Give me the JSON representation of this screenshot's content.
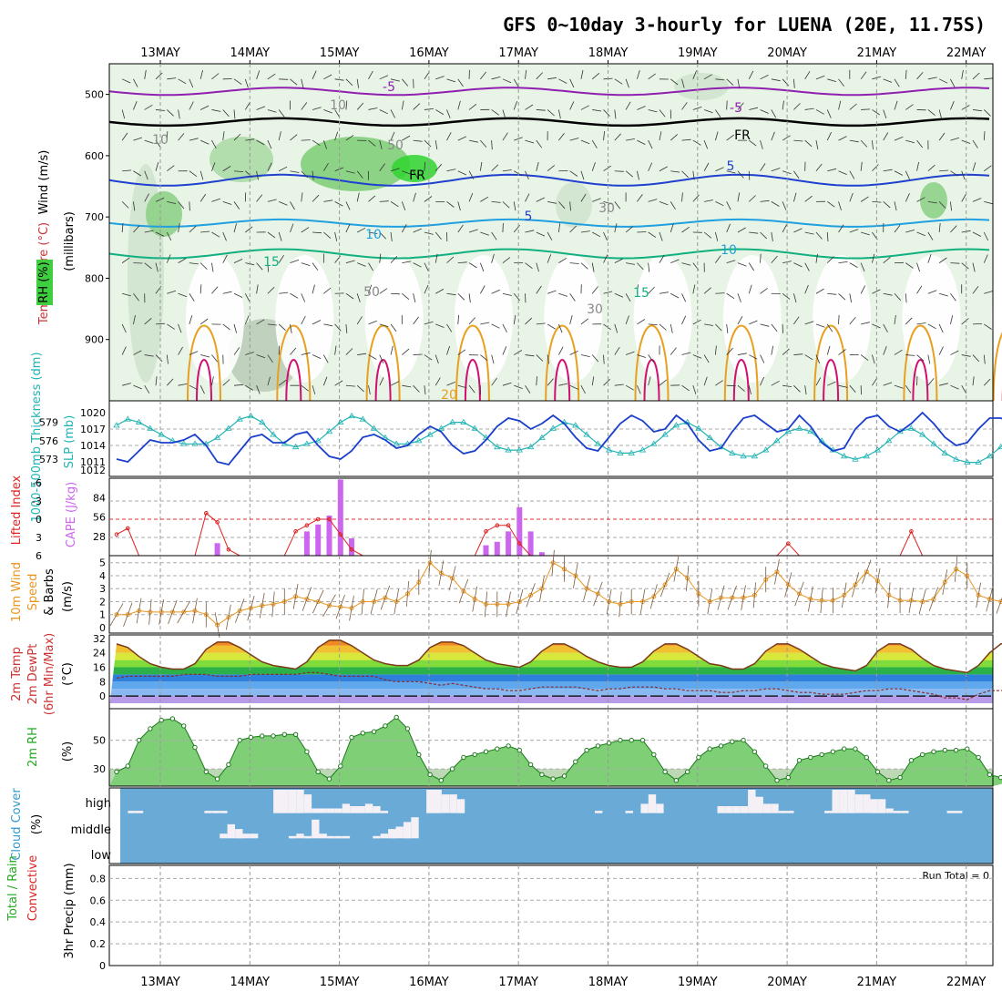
{
  "title": "GFS 0~10day 3-hourly for LUENA (20E, 11.75S)",
  "dates": [
    "13MAY",
    "14MAY",
    "15MAY",
    "16MAY",
    "17MAY",
    "18MAY",
    "19MAY",
    "20MAY",
    "21MAY",
    "22MAY"
  ],
  "run_total": "Run Total = 0",
  "colors": {
    "rh_fill": "#3fce3f",
    "thickness": "#22b3b3",
    "slp": "#1a3fcc",
    "cape": "#cc66ee",
    "lifted": "#dd2222",
    "wind": "#e89520",
    "cloud": "#6aaad6",
    "rh2m": "#3fbf3f"
  },
  "chart_data": [
    {
      "panel": "upper-air",
      "type": "heatmap",
      "ylabels": [
        "Wind (m/s)",
        "Temperature (°C)",
        "(millibars)",
        "RH (%)"
      ],
      "yticks": [
        500,
        600,
        700,
        800,
        900
      ],
      "ylim": [
        1000,
        450
      ],
      "contour_labels": [
        "-5",
        "-5",
        "FR",
        "FR",
        "5",
        "5",
        "10",
        "10",
        "15",
        "15",
        "20",
        "50",
        "50",
        "30",
        "30",
        "10",
        "10"
      ]
    },
    {
      "panel": "thickness-slp",
      "type": "line",
      "ylabels": [
        "1000-500mb Thickness (dm)",
        "SLP (mb)"
      ],
      "thickness_ticks": [
        "579",
        "576",
        "573"
      ],
      "slp_ticks": [
        "1020",
        "1017",
        "1014",
        "1011",
        "1012"
      ],
      "thickness": [
        578.5,
        579.5,
        579,
        578,
        577,
        576,
        575.5,
        575.5,
        575.5,
        576.5,
        578,
        579.5,
        580,
        579,
        577,
        575.5,
        575,
        575.5,
        576,
        577.5,
        579,
        580,
        579.5,
        578,
        576.5,
        575.5,
        575.5,
        576,
        577,
        578,
        579,
        579,
        578,
        576.5,
        575,
        574.5,
        574.5,
        575,
        576.5,
        578,
        579,
        578.5,
        577,
        575.5,
        574.5,
        574,
        574,
        574.5,
        575.5,
        577,
        578.5,
        579,
        578,
        576.5,
        575,
        574,
        573.5,
        573.5,
        574.5,
        576,
        577.5,
        578,
        577.5,
        576,
        574.5,
        573.5,
        573,
        573.5,
        574.5,
        576,
        577.5,
        578,
        577,
        575.5,
        574,
        573,
        572.5,
        572.5,
        573.5,
        575,
        576.5,
        576.5
      ],
      "slp": [
        1011.5,
        1011,
        1013,
        1015,
        1014.5,
        1014.5,
        1015,
        1016,
        1014,
        1011,
        1010.5,
        1013,
        1015.5,
        1016,
        1014.5,
        1014.5,
        1016,
        1016.5,
        1014,
        1012,
        1011.5,
        1013,
        1015.5,
        1016,
        1015,
        1013.5,
        1014,
        1016,
        1017.5,
        1016.5,
        1014,
        1012.5,
        1013,
        1015,
        1017.5,
        1019,
        1018.5,
        1017,
        1018,
        1019.5,
        1018,
        1015.5,
        1013.5,
        1013,
        1015.5,
        1018,
        1019.5,
        1018.5,
        1016.5,
        1017,
        1019.5,
        1018,
        1015,
        1013,
        1013.5,
        1016.5,
        1019,
        1019.5,
        1018,
        1016.5,
        1017,
        1019.5,
        1017.5,
        1014.5,
        1013,
        1013.5,
        1017,
        1019,
        1019.5,
        1017.5,
        1016.5,
        1018,
        1020,
        1018,
        1015.5,
        1014,
        1014.5,
        1017,
        1019,
        1019,
        1018,
        1018.5
      ]
    },
    {
      "panel": "cape-lifted-index",
      "type": "bar",
      "ylabels": [
        "Lifted Index",
        "CAPE (J/kg)"
      ],
      "li_ticks": [
        "-6",
        "-3",
        "0",
        "3",
        "6"
      ],
      "cape_ticks": [
        "84",
        "56",
        "28"
      ],
      "cape": [
        0,
        0,
        0,
        0,
        0,
        0,
        0,
        0,
        0,
        18,
        0,
        0,
        0,
        0,
        0,
        0,
        0,
        35,
        45,
        58,
        110,
        25,
        0,
        0,
        0,
        0,
        0,
        0,
        0,
        0,
        0,
        0,
        0,
        15,
        20,
        35,
        70,
        35,
        5,
        0,
        0,
        0,
        0,
        0,
        0,
        0,
        0,
        0,
        0,
        0,
        0,
        0,
        0,
        0,
        0,
        0,
        0,
        0,
        0,
        0,
        0,
        0,
        0,
        0,
        0,
        0,
        0,
        0,
        0,
        0,
        0,
        0,
        0,
        0,
        0,
        0,
        0,
        0,
        0,
        0,
        0,
        0
      ],
      "lifted": [
        2.5,
        1.5,
        6,
        6,
        6,
        6,
        6,
        6,
        -1,
        0.5,
        5,
        6,
        6,
        6,
        6,
        6,
        2,
        1,
        0,
        0,
        2.5,
        5,
        6,
        6,
        6,
        6,
        6,
        6,
        6,
        6,
        6,
        6,
        6,
        2,
        1,
        1,
        4,
        6,
        6,
        6,
        6,
        6,
        6,
        6,
        6,
        6,
        6,
        6,
        6,
        6,
        6,
        6,
        6,
        6,
        6,
        6,
        6,
        6,
        6,
        6,
        4,
        6,
        6,
        6,
        6,
        6,
        6,
        6,
        6,
        6,
        6,
        2,
        6,
        6,
        6,
        6,
        6,
        6,
        6,
        6,
        6,
        6
      ]
    },
    {
      "panel": "wind10m",
      "type": "line",
      "ylabels": [
        "10m Wind Speed & Barbs (m/s)"
      ],
      "yticks": [
        "5",
        "4",
        "3",
        "2",
        "1",
        "0"
      ],
      "speed": [
        1,
        1,
        1.3,
        1.2,
        1.2,
        1.2,
        1.2,
        1.3,
        1,
        0.2,
        0.8,
        1.3,
        1.5,
        1.7,
        1.8,
        2,
        2.4,
        2.2,
        2,
        1.7,
        1.6,
        1.5,
        2,
        2,
        2.3,
        2,
        2.6,
        3.5,
        5,
        4.2,
        3.8,
        2.8,
        2.2,
        1.8,
        1.8,
        1.8,
        2,
        2.5,
        3,
        5,
        4.5,
        4,
        3,
        2.6,
        2,
        1.8,
        2,
        2,
        2.4,
        3.3,
        4.5,
        3.8,
        2.6,
        2,
        2.3,
        2.3,
        2.3,
        2.5,
        3.7,
        4.3,
        3.3,
        2.6,
        2.2,
        2.1,
        2.1,
        2.5,
        3.3,
        4.3,
        3.6,
        2.5,
        2.1,
        2.1,
        2,
        2.2,
        3.5,
        4.5,
        4,
        2.5,
        2.2,
        2,
        2,
        0.7,
        0.6,
        1,
        2.3,
        3,
        2.2,
        1.7,
        1.8
      ],
      "direction": [
        120,
        110,
        100,
        95,
        100,
        110,
        120,
        100,
        90,
        80,
        100,
        110,
        105,
        100,
        95,
        90,
        100,
        110,
        115,
        120,
        110,
        100,
        95,
        105,
        110,
        100,
        95,
        90,
        95,
        100,
        105,
        110,
        100,
        95,
        90,
        100,
        105,
        110,
        100,
        95,
        90,
        100,
        105,
        110,
        100,
        95,
        90,
        100,
        105,
        110,
        100,
        95,
        90,
        100,
        105,
        110,
        100,
        95,
        90,
        100,
        105,
        110,
        100,
        95,
        90,
        100,
        105,
        110,
        100,
        95,
        90,
        100,
        105,
        110,
        100,
        95,
        90,
        100,
        105,
        110,
        100,
        95,
        90,
        100,
        105,
        110,
        100,
        95,
        90
      ]
    },
    {
      "panel": "temp2m",
      "type": "area",
      "ylabels": [
        "2m Temp",
        "2m DewPt",
        "(6hr Min/Max)",
        "(°C)"
      ],
      "yticks": [
        "32",
        "24",
        "16",
        "8",
        "0"
      ],
      "temp": [
        29,
        27,
        22,
        18,
        16,
        15,
        15,
        18,
        26,
        30,
        30,
        27,
        23,
        19,
        17,
        16,
        15,
        19,
        27,
        31,
        31,
        28,
        24,
        20,
        18,
        17,
        17,
        20,
        27,
        30,
        30,
        28,
        24,
        20,
        18,
        17,
        16,
        19,
        25,
        29,
        29,
        26,
        22,
        19,
        17,
        16,
        16,
        19,
        25,
        29,
        29,
        26,
        22,
        18,
        17,
        15,
        15,
        18,
        25,
        29,
        29,
        26,
        22,
        18,
        16,
        15,
        14,
        17,
        25,
        29,
        29,
        26,
        21,
        17,
        15,
        14,
        13,
        17,
        24,
        29,
        29,
        26,
        22,
        18,
        15,
        14,
        13,
        15,
        16
      ],
      "dewpt": [
        10,
        11,
        11,
        11,
        11,
        11,
        12,
        12,
        12,
        11,
        11,
        11,
        12,
        12,
        12,
        12,
        12,
        13,
        13,
        12,
        11,
        11,
        11,
        11,
        9,
        8,
        8,
        8,
        7,
        6,
        7,
        6,
        5,
        4,
        4,
        3,
        3,
        4,
        5,
        5,
        5,
        5,
        4,
        3,
        4,
        4,
        5,
        5,
        5,
        4,
        4,
        3,
        3,
        3,
        2,
        2,
        3,
        3,
        4,
        4,
        3,
        2,
        2,
        1,
        1,
        1,
        2,
        3,
        3,
        4,
        4,
        3,
        2,
        1,
        -1,
        -1,
        -2,
        1,
        3,
        3,
        4,
        3,
        2,
        1,
        1,
        1,
        2,
        2,
        3
      ]
    },
    {
      "panel": "rh2m",
      "type": "area",
      "ylabels": [
        "2m RH",
        "(%)"
      ],
      "yticks": [
        "50",
        "30"
      ],
      "rh": [
        28,
        32,
        50,
        58,
        64,
        65,
        60,
        45,
        28,
        23,
        33,
        50,
        52,
        53,
        53,
        54,
        54,
        42,
        28,
        23,
        32,
        52,
        55,
        56,
        60,
        66,
        58,
        40,
        26,
        22,
        30,
        38,
        40,
        42,
        44,
        46,
        43,
        33,
        26,
        23,
        25,
        35,
        43,
        46,
        48,
        50,
        50,
        50,
        40,
        28,
        22,
        28,
        38,
        44,
        46,
        49,
        50,
        42,
        32,
        22,
        24,
        36,
        38,
        40,
        42,
        44,
        44,
        38,
        28,
        22,
        24,
        36,
        40,
        42,
        43,
        43,
        44,
        38,
        26,
        24,
        30,
        36,
        38,
        40,
        40,
        42,
        40,
        30,
        24,
        28,
        40,
        52,
        52,
        52,
        53,
        50
      ]
    },
    {
      "panel": "cloud",
      "type": "heatmap",
      "ylabels": [
        "Cloud Cover",
        "(%)"
      ],
      "levels": [
        "high",
        "middle",
        "low"
      ],
      "high": [
        0,
        10,
        10,
        0,
        0,
        0,
        0,
        0,
        0,
        0,
        0,
        10,
        10,
        10,
        0,
        0,
        0,
        0,
        0,
        0,
        100,
        100,
        100,
        100,
        80,
        20,
        20,
        20,
        20,
        40,
        30,
        30,
        40,
        30,
        10,
        0,
        0,
        0,
        0,
        0,
        100,
        100,
        80,
        80,
        60,
        0,
        0,
        0,
        0,
        0,
        0,
        0,
        0,
        0,
        0,
        0,
        0,
        0,
        0,
        0,
        0,
        0,
        10,
        0,
        0,
        0,
        10,
        0,
        40,
        80,
        40,
        0,
        0,
        0,
        0,
        0,
        0,
        0,
        30,
        30,
        30,
        30,
        100,
        70,
        40,
        40,
        10,
        10,
        0,
        0,
        0,
        0,
        10,
        100,
        100,
        100,
        80,
        80,
        60,
        60,
        20,
        10,
        10,
        0,
        0,
        0,
        0,
        0,
        10,
        10,
        0,
        0,
        0,
        0
      ],
      "middle": [
        0,
        0,
        0,
        0,
        0,
        0,
        0,
        0,
        0,
        0,
        0,
        0,
        0,
        20,
        60,
        40,
        20,
        20,
        0,
        0,
        0,
        0,
        10,
        20,
        10,
        80,
        20,
        10,
        10,
        10,
        0,
        0,
        0,
        10,
        20,
        40,
        50,
        70,
        90,
        0,
        0,
        0,
        0,
        0,
        0,
        0,
        0,
        0,
        0,
        0,
        0,
        0,
        0,
        0,
        0,
        0,
        0,
        0,
        0,
        0,
        0,
        0,
        0,
        0,
        0,
        0,
        0,
        0,
        0,
        0,
        0,
        0,
        0,
        0,
        0,
        0,
        0,
        0,
        0,
        0,
        0,
        0,
        0,
        0,
        0,
        0,
        0,
        0,
        0,
        0,
        0,
        0,
        0,
        0,
        0,
        0,
        0,
        0,
        0,
        0,
        0,
        0,
        0,
        0,
        0,
        0,
        0,
        0,
        0,
        0,
        0,
        0,
        0,
        0
      ]
    },
    {
      "panel": "precip",
      "type": "bar",
      "ylabels": [
        "Total / Rain",
        "Convective",
        "3hr Precip (mm)"
      ],
      "yticks": [
        "0.8",
        "0.6",
        "0.4",
        "0.2",
        "0"
      ],
      "ylim": [
        0,
        0.9
      ],
      "total": [],
      "convective": []
    }
  ]
}
